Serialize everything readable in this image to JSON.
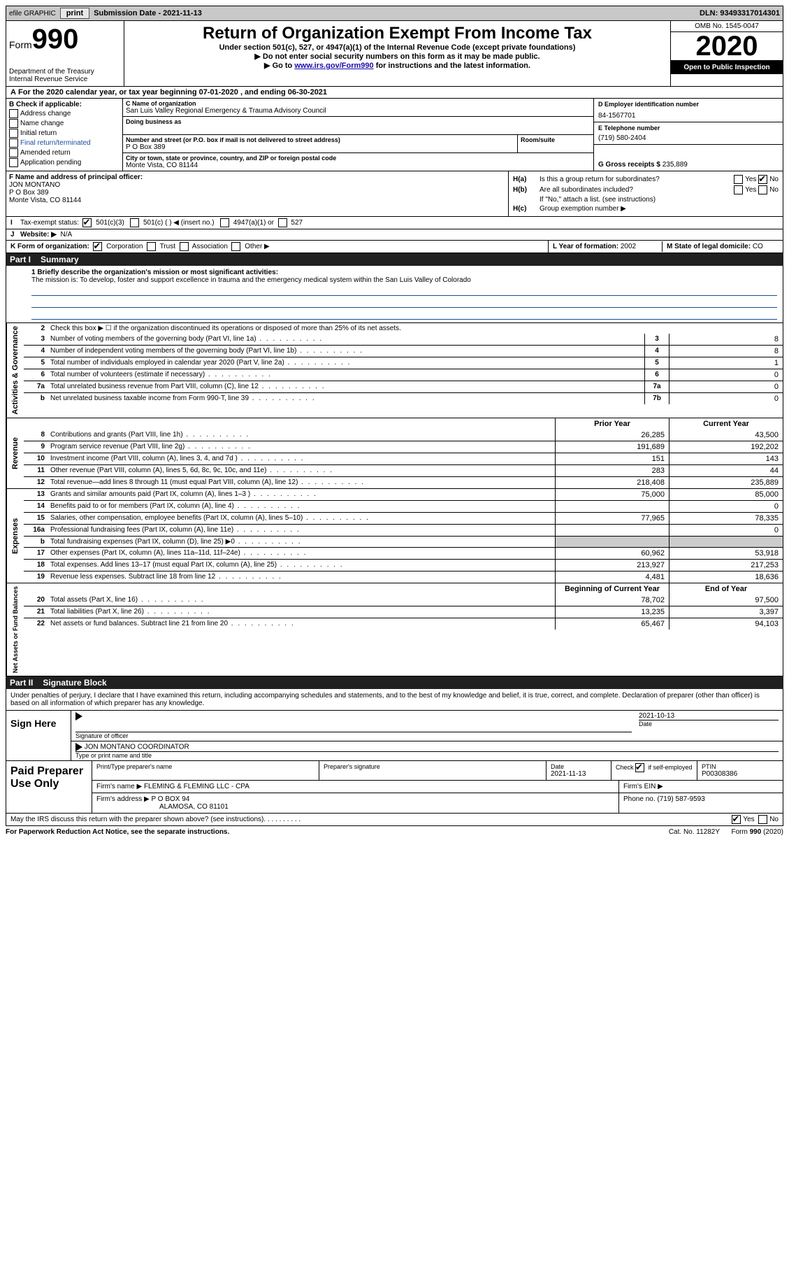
{
  "top_bar": {
    "efile": "efile GRAPHIC",
    "print": "print",
    "submission_date_label": "Submission Date - 2021-11-13",
    "dln_label": "DLN: 93493317014301"
  },
  "header": {
    "form_label": "Form",
    "form_number": "990",
    "dept": "Department of the Treasury\nInternal Revenue Service",
    "title": "Return of Organization Exempt From Income Tax",
    "subtitle": "Under section 501(c), 527, or 4947(a)(1) of the Internal Revenue Code (except private foundations)",
    "ssn_note": "▶ Do not enter social security numbers on this form as it may be made public.",
    "goto": "▶ Go to ",
    "goto_link": "www.irs.gov/Form990",
    "goto_tail": " for instructions and the latest information.",
    "omb": "OMB No. 1545-0047",
    "year": "2020",
    "open": "Open to Public Inspection"
  },
  "line_a": "For the 2020 calendar year, or tax year beginning 07-01-2020   , and ending 06-30-2021",
  "col_b": {
    "title": "B Check if applicable:",
    "items": [
      "Address change",
      "Name change",
      "Initial return",
      "Final return/terminated",
      "Amended return",
      "Application pending"
    ]
  },
  "col_c": {
    "name_lbl": "C Name of organization",
    "name": "San Luis Valley Regional Emergency & Trauma Advisory Council",
    "dba_lbl": "Doing business as",
    "street_lbl": "Number and street (or P.O. box if mail is not delivered to street address)",
    "room_lbl": "Room/suite",
    "street": "P O Box 389",
    "city_lbl": "City or town, state or province, country, and ZIP or foreign postal code",
    "city": "Monte Vista, CO  81144"
  },
  "col_d": {
    "ein_lbl": "D Employer identification number",
    "ein": "84-1567701",
    "tel_lbl": "E Telephone number",
    "tel": "(719) 580-2404",
    "gross_lbl": "G Gross receipts $",
    "gross": "235,889"
  },
  "col_f": {
    "lbl": "F Name and address of principal officer:",
    "name": "JON MONTANO",
    "street": "P O Box 389",
    "city": "Monte Vista, CO  81144"
  },
  "col_h": {
    "ha": "Is this a group return for subordinates?",
    "hb": "Are all subordinates included?",
    "hb_note": "If \"No,\" attach a list. (see instructions)",
    "hc": "Group exemption number ▶"
  },
  "tax_exempt": {
    "lbl": "Tax-exempt status:",
    "opts": [
      "501(c)(3)",
      "501(c) (  ) ◀ (insert no.)",
      "4947(a)(1) or",
      "527"
    ]
  },
  "website": {
    "lbl": "Website: ▶",
    "val": "N/A"
  },
  "form_org": {
    "lbl": "K Form of organization:",
    "opts": [
      "Corporation",
      "Trust",
      "Association",
      "Other ▶"
    ],
    "year_form_lbl": "L Year of formation:",
    "year_form": "2002",
    "domicile_lbl": "M State of legal domicile:",
    "domicile": "CO"
  },
  "part1": {
    "label": "Part I",
    "title": "Summary"
  },
  "mission": {
    "q": "1  Briefly describe the organization's mission or most significant activities:",
    "text": "The mission is: To develop, foster and support excellence in trauma and the emergency medical system within the San Luis Valley of Colorado"
  },
  "gov": {
    "side": "Activities & Governance",
    "r2": "Check this box ▶ ☐  if the organization discontinued its operations or disposed of more than 25% of its net assets.",
    "rows": [
      {
        "n": "3",
        "desc": "Number of voting members of the governing body (Part VI, line 1a)",
        "box": "3",
        "v": "8"
      },
      {
        "n": "4",
        "desc": "Number of independent voting members of the governing body (Part VI, line 1b)",
        "box": "4",
        "v": "8"
      },
      {
        "n": "5",
        "desc": "Total number of individuals employed in calendar year 2020 (Part V, line 2a)",
        "box": "5",
        "v": "1"
      },
      {
        "n": "6",
        "desc": "Total number of volunteers (estimate if necessary)",
        "box": "6",
        "v": "0"
      },
      {
        "n": "7a",
        "desc": "Total unrelated business revenue from Part VIII, column (C), line 12",
        "box": "7a",
        "v": "0"
      },
      {
        "n": "b",
        "desc": "Net unrelated business taxable income from Form 990-T, line 39",
        "box": "7b",
        "v": "0"
      }
    ]
  },
  "rev": {
    "side": "Revenue",
    "hdr_prior": "Prior Year",
    "hdr_curr": "Current Year",
    "rows": [
      {
        "n": "8",
        "desc": "Contributions and grants (Part VIII, line 1h)",
        "p": "26,285",
        "c": "43,500"
      },
      {
        "n": "9",
        "desc": "Program service revenue (Part VIII, line 2g)",
        "p": "191,689",
        "c": "192,202"
      },
      {
        "n": "10",
        "desc": "Investment income (Part VIII, column (A), lines 3, 4, and 7d )",
        "p": "151",
        "c": "143"
      },
      {
        "n": "11",
        "desc": "Other revenue (Part VIII, column (A), lines 5, 6d, 8c, 9c, 10c, and 11e)",
        "p": "283",
        "c": "44"
      },
      {
        "n": "12",
        "desc": "Total revenue—add lines 8 through 11 (must equal Part VIII, column (A), line 12)",
        "p": "218,408",
        "c": "235,889"
      }
    ]
  },
  "exp": {
    "side": "Expenses",
    "rows": [
      {
        "n": "13",
        "desc": "Grants and similar amounts paid (Part IX, column (A), lines 1–3 )",
        "p": "75,000",
        "c": "85,000"
      },
      {
        "n": "14",
        "desc": "Benefits paid to or for members (Part IX, column (A), line 4)",
        "p": "",
        "c": "0"
      },
      {
        "n": "15",
        "desc": "Salaries, other compensation, employee benefits (Part IX, column (A), lines 5–10)",
        "p": "77,965",
        "c": "78,335"
      },
      {
        "n": "16a",
        "desc": "Professional fundraising fees (Part IX, column (A), line 11e)",
        "p": "",
        "c": "0"
      },
      {
        "n": "b",
        "desc": "Total fundraising expenses (Part IX, column (D), line 25) ▶0",
        "p": "grey",
        "c": "grey"
      },
      {
        "n": "17",
        "desc": "Other expenses (Part IX, column (A), lines 11a–11d, 11f–24e)",
        "p": "60,962",
        "c": "53,918"
      },
      {
        "n": "18",
        "desc": "Total expenses. Add lines 13–17 (must equal Part IX, column (A), line 25)",
        "p": "213,927",
        "c": "217,253"
      },
      {
        "n": "19",
        "desc": "Revenue less expenses. Subtract line 18 from line 12",
        "p": "4,481",
        "c": "18,636"
      }
    ]
  },
  "net": {
    "side": "Net Assets or Fund Balances",
    "hdr_begin": "Beginning of Current Year",
    "hdr_end": "End of Year",
    "rows": [
      {
        "n": "20",
        "desc": "Total assets (Part X, line 16)",
        "p": "78,702",
        "c": "97,500"
      },
      {
        "n": "21",
        "desc": "Total liabilities (Part X, line 26)",
        "p": "13,235",
        "c": "3,397"
      },
      {
        "n": "22",
        "desc": "Net assets or fund balances. Subtract line 21 from line 20",
        "p": "65,467",
        "c": "94,103"
      }
    ]
  },
  "part2": {
    "label": "Part II",
    "title": "Signature Block"
  },
  "sig": {
    "decl": "Under penalties of perjury, I declare that I have examined this return, including accompanying schedules and statements, and to the best of my knowledge and belief, it is true, correct, and complete. Declaration of preparer (other than officer) is based on all information of which preparer has any knowledge.",
    "sign_here": "Sign Here",
    "sig_officer": "Signature of officer",
    "date": "2021-10-13",
    "date_lbl": "Date",
    "name_title": "JON MONTANO  COORDINATOR",
    "type_lbl": "Type or print name and title"
  },
  "paid": {
    "label": "Paid Preparer Use Only",
    "print_lbl": "Print/Type preparer's name",
    "prep_sig_lbl": "Preparer's signature",
    "date_lbl": "Date",
    "date": "2021-11-13",
    "check_lbl": "Check ☑ if self-employed",
    "ptin_lbl": "PTIN",
    "ptin": "P00308386",
    "firm_name_lbl": "Firm's name    ▶",
    "firm_name": "FLEMING & FLEMING LLC - CPA",
    "firm_ein_lbl": "Firm's EIN ▶",
    "firm_addr_lbl": "Firm's address ▶",
    "firm_addr1": "P O BOX 94",
    "firm_addr2": "ALAMOSA, CO  81101",
    "phone_lbl": "Phone no.",
    "phone": "(719) 587-9593"
  },
  "discuss": "May the IRS discuss this return with the preparer shown above? (see instructions)",
  "footer": {
    "pra": "For Paperwork Reduction Act Notice, see the separate instructions.",
    "cat": "Cat. No. 11282Y",
    "form": "Form 990 (2020)"
  }
}
